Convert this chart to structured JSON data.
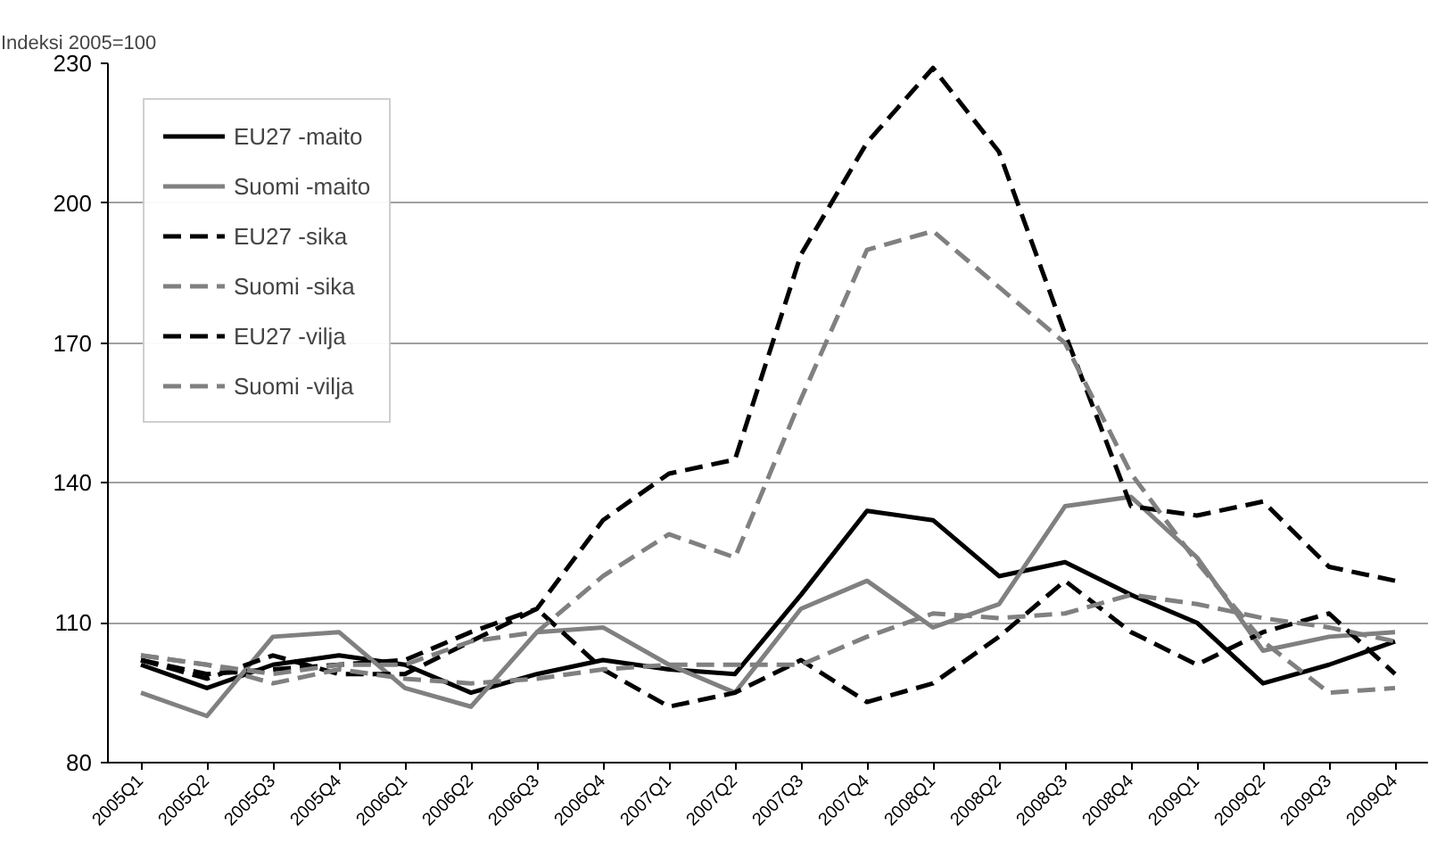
{
  "chart_data": {
    "type": "line",
    "ylabel": "Indeksi 2005=100",
    "categories": [
      "2005Q1",
      "2005Q2",
      "2005Q3",
      "2005Q4",
      "2006Q1",
      "2006Q2",
      "2006Q3",
      "2006Q4",
      "2007Q1",
      "2007Q2",
      "2007Q3",
      "2007Q4",
      "2008Q1",
      "2008Q2",
      "2008Q3",
      "2008Q4",
      "2009Q1",
      "2009Q2",
      "2009Q3",
      "2009Q4"
    ],
    "series": [
      {
        "name": "EU27 -maito",
        "color": "#000000",
        "line_style": "solid",
        "values": [
          101,
          96,
          101,
          103,
          101,
          95,
          99,
          102,
          100,
          99,
          116,
          134,
          132,
          120,
          123,
          116,
          110,
          97,
          101,
          106
        ]
      },
      {
        "name": "Suomi -maito",
        "color": "#808080",
        "line_style": "solid",
        "values": [
          95,
          90,
          107,
          108,
          96,
          92,
          108,
          109,
          101,
          95,
          113,
          119,
          109,
          114,
          135,
          137,
          124,
          104,
          107,
          108
        ]
      },
      {
        "name": "EU27 -sika",
        "color": "#000000",
        "line_style": "dashed",
        "values": [
          102,
          98,
          103,
          99,
          99,
          106,
          113,
          100,
          92,
          95,
          102,
          93,
          97,
          107,
          119,
          108,
          101,
          108,
          112,
          99
        ]
      },
      {
        "name": "Suomi -sika",
        "color": "#808080",
        "line_style": "dashed",
        "values": [
          103,
          101,
          97,
          100,
          98,
          97,
          98,
          100,
          101,
          101,
          101,
          107,
          112,
          111,
          112,
          116,
          114,
          111,
          109,
          106
        ]
      },
      {
        "name": "EU27 -vilja",
        "color": "#000000",
        "line_style": "dashed",
        "values": [
          102,
          99,
          100,
          101,
          102,
          108,
          113,
          132,
          142,
          145,
          189,
          213,
          229,
          211,
          172,
          135,
          133,
          136,
          122,
          119
        ]
      },
      {
        "name": "Suomi -vilja",
        "color": "#808080",
        "line_style": "dashed",
        "values": [
          103,
          101,
          99,
          101,
          101,
          106,
          108,
          120,
          129,
          124,
          158,
          190,
          194,
          182,
          170,
          142,
          123,
          106,
          95,
          96
        ]
      }
    ],
    "ylim": [
      80,
      230
    ],
    "yticks": [
      80,
      110,
      140,
      170,
      200,
      230
    ],
    "grid": "y",
    "legend": "top left"
  }
}
